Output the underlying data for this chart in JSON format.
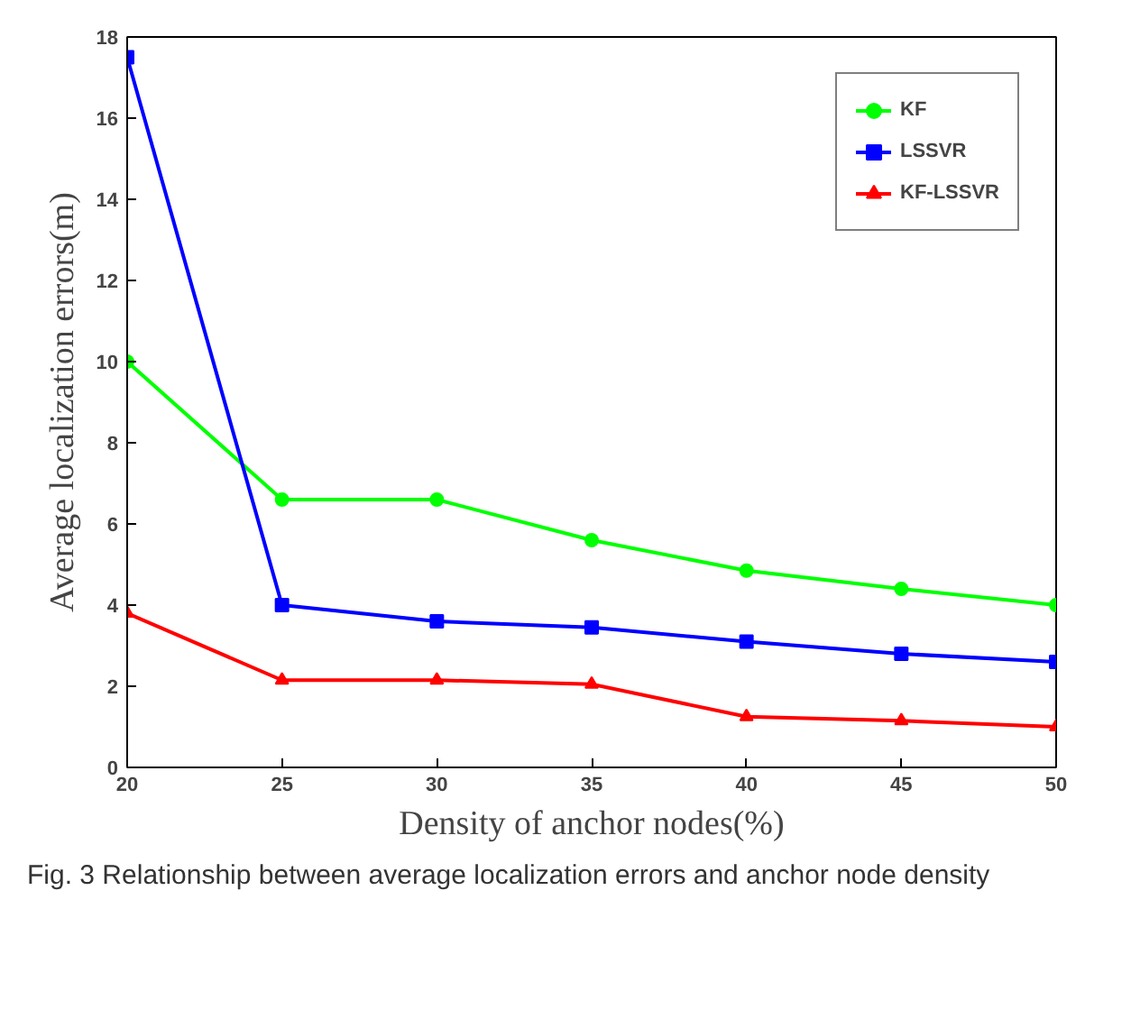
{
  "chart_data": {
    "type": "line",
    "xlabel": "Density of anchor nodes(%)",
    "ylabel": "Average localization errors(m)",
    "x": [
      20,
      25,
      30,
      35,
      40,
      45,
      50
    ],
    "series": [
      {
        "name": "KF",
        "color": "#00ff00",
        "marker": "circle",
        "values": [
          10.0,
          6.6,
          6.6,
          5.6,
          4.85,
          4.4,
          4.0
        ]
      },
      {
        "name": "LSSVR",
        "color": "#0000ff",
        "marker": "square",
        "values": [
          17.5,
          4.0,
          3.6,
          3.45,
          3.1,
          2.8,
          2.6
        ]
      },
      {
        "name": "KF-LSSVR",
        "color": "#ff0000",
        "marker": "triangle",
        "values": [
          3.8,
          2.15,
          2.15,
          2.05,
          1.25,
          1.15,
          1.0
        ]
      }
    ],
    "xlim": [
      20,
      50
    ],
    "ylim": [
      0,
      18
    ],
    "xticks": [
      20,
      25,
      30,
      35,
      40,
      45,
      50
    ],
    "yticks": [
      0,
      2,
      4,
      6,
      8,
      10,
      12,
      14,
      16,
      18
    ],
    "grid": false,
    "legend": "top right",
    "line_style": "solid",
    "annotations": [
      "Fig. 3 Relationship between average localization errors and anchor node density"
    ]
  }
}
